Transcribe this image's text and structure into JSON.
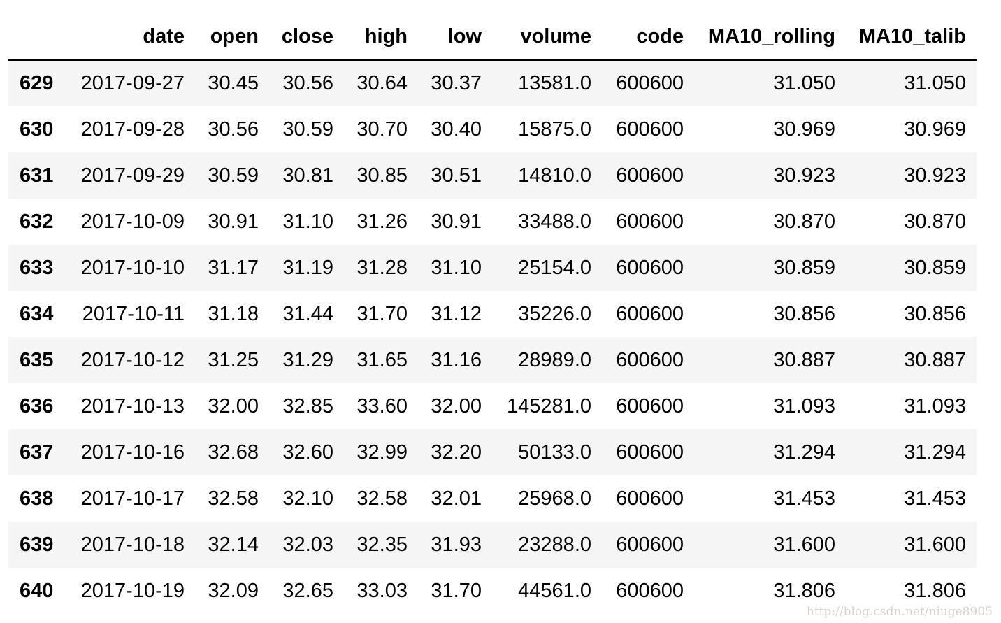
{
  "columns": [
    "",
    "date",
    "open",
    "close",
    "high",
    "low",
    "volume",
    "code",
    "MA10_rolling",
    "MA10_talib"
  ],
  "rows": [
    [
      "629",
      "2017-09-27",
      "30.45",
      "30.56",
      "30.64",
      "30.37",
      "13581.0",
      "600600",
      "31.050",
      "31.050"
    ],
    [
      "630",
      "2017-09-28",
      "30.56",
      "30.59",
      "30.70",
      "30.40",
      "15875.0",
      "600600",
      "30.969",
      "30.969"
    ],
    [
      "631",
      "2017-09-29",
      "30.59",
      "30.81",
      "30.85",
      "30.51",
      "14810.0",
      "600600",
      "30.923",
      "30.923"
    ],
    [
      "632",
      "2017-10-09",
      "30.91",
      "31.10",
      "31.26",
      "30.91",
      "33488.0",
      "600600",
      "30.870",
      "30.870"
    ],
    [
      "633",
      "2017-10-10",
      "31.17",
      "31.19",
      "31.28",
      "31.10",
      "25154.0",
      "600600",
      "30.859",
      "30.859"
    ],
    [
      "634",
      "2017-10-11",
      "31.18",
      "31.44",
      "31.70",
      "31.12",
      "35226.0",
      "600600",
      "30.856",
      "30.856"
    ],
    [
      "635",
      "2017-10-12",
      "31.25",
      "31.29",
      "31.65",
      "31.16",
      "28989.0",
      "600600",
      "30.887",
      "30.887"
    ],
    [
      "636",
      "2017-10-13",
      "32.00",
      "32.85",
      "33.60",
      "32.00",
      "145281.0",
      "600600",
      "31.093",
      "31.093"
    ],
    [
      "637",
      "2017-10-16",
      "32.68",
      "32.60",
      "32.99",
      "32.20",
      "50133.0",
      "600600",
      "31.294",
      "31.294"
    ],
    [
      "638",
      "2017-10-17",
      "32.58",
      "32.10",
      "32.58",
      "32.01",
      "25968.0",
      "600600",
      "31.453",
      "31.453"
    ],
    [
      "639",
      "2017-10-18",
      "32.14",
      "32.03",
      "32.35",
      "31.93",
      "23288.0",
      "600600",
      "31.600",
      "31.600"
    ],
    [
      "640",
      "2017-10-19",
      "32.09",
      "32.65",
      "33.03",
      "31.70",
      "44561.0",
      "600600",
      "31.806",
      "31.806"
    ]
  ],
  "watermark": "http://blog.csdn.net/niuge8905"
}
